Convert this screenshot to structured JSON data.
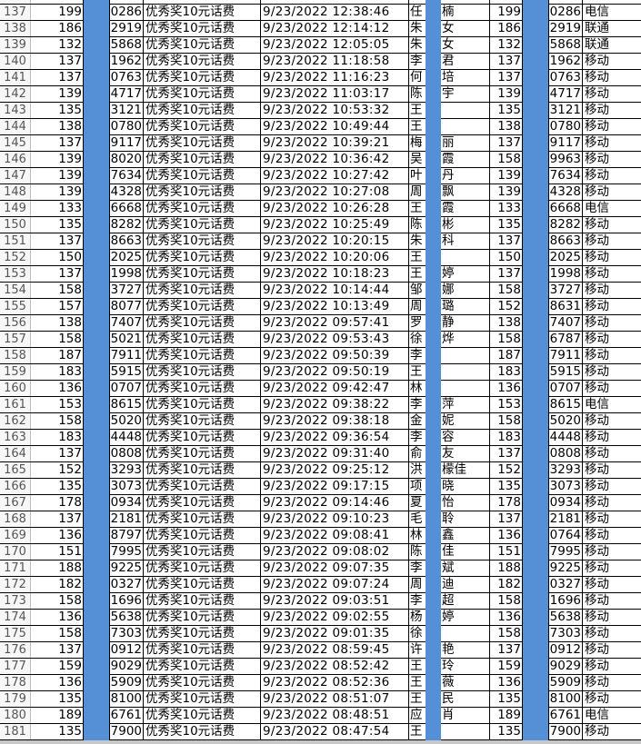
{
  "colors": {
    "highlight_bar": "#5590d6",
    "grid": "#000000"
  },
  "rows": [
    {
      "n": "137",
      "a": "199",
      "c": "0286",
      "d": "优秀奖10元话费",
      "e": "9/23/2022 12:38:46",
      "f": "任",
      "g": "楠",
      "h": "199",
      "i": "0286",
      "j": "电信"
    },
    {
      "n": "138",
      "a": "186",
      "c": "2919",
      "d": "优秀奖10元话费",
      "e": "9/23/2022 12:14:12",
      "f": "朱",
      "g": "女",
      "h": "186",
      "i": "2919",
      "j": "联通"
    },
    {
      "n": "139",
      "a": "132",
      "c": "5868",
      "d": "优秀奖10元话费",
      "e": "9/23/2022 12:05:05",
      "f": "朱",
      "g": "女",
      "h": "132",
      "i": "5868",
      "j": "联通"
    },
    {
      "n": "140",
      "a": "137",
      "c": "1962",
      "d": "优秀奖10元话费",
      "e": "9/23/2022 11:18:58",
      "f": "李",
      "g": "君",
      "h": "137",
      "i": "1962",
      "j": "移动"
    },
    {
      "n": "141",
      "a": "137",
      "c": "0763",
      "d": "优秀奖10元话费",
      "e": "9/23/2022 11:16:23",
      "f": "何",
      "g": "培",
      "h": "137",
      "i": "0763",
      "j": "移动"
    },
    {
      "n": "142",
      "a": "139",
      "c": "4717",
      "d": "优秀奖10元话费",
      "e": "9/23/2022 11:03:17",
      "f": "陈",
      "g": "宇",
      "h": "139",
      "i": "4717",
      "j": "移动"
    },
    {
      "n": "143",
      "a": "135",
      "c": "3121",
      "d": "优秀奖10元话费",
      "e": "9/23/2022 10:53:32",
      "f": "王",
      "g": "",
      "h": "135",
      "i": "3121",
      "j": "移动"
    },
    {
      "n": "144",
      "a": "138",
      "c": "0780",
      "d": "优秀奖10元话费",
      "e": "9/23/2022 10:49:44",
      "f": "王",
      "g": "",
      "h": "138",
      "i": "0780",
      "j": "移动"
    },
    {
      "n": "145",
      "a": "137",
      "c": "9117",
      "d": "优秀奖10元话费",
      "e": "9/23/2022 10:39:21",
      "f": "梅",
      "g": "丽",
      "h": "137",
      "i": "9117",
      "j": "移动"
    },
    {
      "n": "146",
      "a": "139",
      "c": "8020",
      "d": "优秀奖10元话费",
      "e": "9/23/2022 10:36:42",
      "f": "吴",
      "g": "霞",
      "h": "158",
      "i": "9963",
      "j": "移动"
    },
    {
      "n": "147",
      "a": "139",
      "c": "7634",
      "d": "优秀奖10元话费",
      "e": "9/23/2022 10:27:42",
      "f": "叶",
      "g": "丹",
      "h": "139",
      "i": "7634",
      "j": "移动"
    },
    {
      "n": "148",
      "a": "139",
      "c": "4328",
      "d": "优秀奖10元话费",
      "e": "9/23/2022 10:27:08",
      "f": "周",
      "g": "飘",
      "h": "139",
      "i": "4328",
      "j": "移动"
    },
    {
      "n": "149",
      "a": "133",
      "c": "6668",
      "d": "优秀奖10元话费",
      "e": "9/23/2022 10:26:28",
      "f": "王",
      "g": "霞",
      "h": "133",
      "i": "6668",
      "j": "电信"
    },
    {
      "n": "150",
      "a": "135",
      "c": "8282",
      "d": "优秀奖10元话费",
      "e": "9/23/2022 10:25:49",
      "f": "陈",
      "g": "彬",
      "h": "135",
      "i": "8282",
      "j": "移动"
    },
    {
      "n": "151",
      "a": "137",
      "c": "8663",
      "d": "优秀奖10元话费",
      "e": "9/23/2022 10:20:15",
      "f": "朱",
      "g": "科",
      "h": "137",
      "i": "8663",
      "j": "移动"
    },
    {
      "n": "152",
      "a": "150",
      "c": "2025",
      "d": "优秀奖10元话费",
      "e": "9/23/2022 10:20:06",
      "f": "王",
      "g": "",
      "h": "150",
      "i": "2025",
      "j": "移动"
    },
    {
      "n": "153",
      "a": "137",
      "c": "1998",
      "d": "优秀奖10元话费",
      "e": "9/23/2022 10:18:23",
      "f": "王",
      "g": "婷",
      "h": "137",
      "i": "1998",
      "j": "移动"
    },
    {
      "n": "154",
      "a": "158",
      "c": "3727",
      "d": "优秀奖10元话费",
      "e": "9/23/2022 10:14:44",
      "f": "邹",
      "g": "娜",
      "h": "158",
      "i": "3727",
      "j": "移动"
    },
    {
      "n": "155",
      "a": "157",
      "c": "8077",
      "d": "优秀奖10元话费",
      "e": "9/23/2022 10:13:49",
      "f": "周",
      "g": "璐",
      "h": "152",
      "i": "8631",
      "j": "移动"
    },
    {
      "n": "156",
      "a": "138",
      "c": "7407",
      "d": "优秀奖10元话费",
      "e": "9/23/2022 09:57:41",
      "f": "罗",
      "g": "静",
      "h": "138",
      "i": "7407",
      "j": "移动"
    },
    {
      "n": "157",
      "a": "158",
      "c": "5021",
      "d": "优秀奖10元话费",
      "e": "9/23/2022 09:53:43",
      "f": "徐",
      "g": "烨",
      "h": "158",
      "i": "6787",
      "j": "移动"
    },
    {
      "n": "158",
      "a": "187",
      "c": "7911",
      "d": "优秀奖10元话费",
      "e": "9/23/2022 09:50:39",
      "f": "李",
      "g": "",
      "h": "187",
      "i": "7911",
      "j": "移动"
    },
    {
      "n": "159",
      "a": "183",
      "c": "5915",
      "d": "优秀奖10元话费",
      "e": "9/23/2022 09:50:19",
      "f": "王",
      "g": "",
      "h": "183",
      "i": "5915",
      "j": "移动"
    },
    {
      "n": "160",
      "a": "136",
      "c": "0707",
      "d": "优秀奖10元话费",
      "e": "9/23/2022 09:42:47",
      "f": "林",
      "g": "",
      "h": "136",
      "i": "0707",
      "j": "移动"
    },
    {
      "n": "161",
      "a": "153",
      "c": "8615",
      "d": "优秀奖10元话费",
      "e": "9/23/2022 09:38:22",
      "f": "李",
      "g": "萍",
      "h": "153",
      "i": "8615",
      "j": "电信"
    },
    {
      "n": "162",
      "a": "158",
      "c": "5020",
      "d": "优秀奖10元话费",
      "e": "9/23/2022 09:38:18",
      "f": "金",
      "g": "妮",
      "h": "158",
      "i": "5020",
      "j": "移动"
    },
    {
      "n": "163",
      "a": "183",
      "c": "4448",
      "d": "优秀奖10元话费",
      "e": "9/23/2022 09:36:54",
      "f": "李",
      "g": "容",
      "h": "183",
      "i": "4448",
      "j": "移动"
    },
    {
      "n": "164",
      "a": "137",
      "c": "0808",
      "d": "优秀奖10元话费",
      "e": "9/23/2022 09:31:40",
      "f": "俞",
      "g": "友",
      "h": "137",
      "i": "0808",
      "j": "移动"
    },
    {
      "n": "165",
      "a": "152",
      "c": "3293",
      "d": "优秀奖10元话费",
      "e": "9/23/2022 09:25:12",
      "f": "洪",
      "g": "檬佳",
      "h": "152",
      "i": "3293",
      "j": "移动"
    },
    {
      "n": "166",
      "a": "135",
      "c": "3073",
      "d": "优秀奖10元话费",
      "e": "9/23/2022 09:17:15",
      "f": "项",
      "g": "晓",
      "h": "135",
      "i": "3073",
      "j": "移动"
    },
    {
      "n": "167",
      "a": "178",
      "c": "0934",
      "d": "优秀奖10元话费",
      "e": "9/23/2022 09:14:46",
      "f": "夏",
      "g": "怡",
      "h": "178",
      "i": "0934",
      "j": "移动"
    },
    {
      "n": "168",
      "a": "137",
      "c": "2181",
      "d": "优秀奖10元话费",
      "e": "9/23/2022 09:10:23",
      "f": "毛",
      "g": "聆",
      "h": "137",
      "i": "2181",
      "j": "移动"
    },
    {
      "n": "169",
      "a": "136",
      "c": "8797",
      "d": "优秀奖10元话费",
      "e": "9/23/2022 09:08:41",
      "f": "林",
      "g": "鑫",
      "h": "136",
      "i": "0764",
      "j": "移动"
    },
    {
      "n": "170",
      "a": "151",
      "c": "7995",
      "d": "优秀奖10元话费",
      "e": "9/23/2022 09:08:02",
      "f": "陈",
      "g": "佳",
      "h": "151",
      "i": "7995",
      "j": "移动"
    },
    {
      "n": "171",
      "a": "188",
      "c": "9225",
      "d": "优秀奖10元话费",
      "e": "9/23/2022 09:07:35",
      "f": "李",
      "g": "斌",
      "h": "188",
      "i": "9225",
      "j": "移动"
    },
    {
      "n": "172",
      "a": "182",
      "c": "0327",
      "d": "优秀奖10元话费",
      "e": "9/23/2022 09:07:24",
      "f": "周",
      "g": "迪",
      "h": "182",
      "i": "0327",
      "j": "移动"
    },
    {
      "n": "173",
      "a": "158",
      "c": "1696",
      "d": "优秀奖10元话费",
      "e": "9/23/2022 09:03:51",
      "f": "李",
      "g": "超",
      "h": "158",
      "i": "1696",
      "j": "移动"
    },
    {
      "n": "174",
      "a": "136",
      "c": "5638",
      "d": "优秀奖10元话费",
      "e": "9/23/2022 09:02:55",
      "f": "杨",
      "g": "婷",
      "h": "136",
      "i": "5638",
      "j": "移动"
    },
    {
      "n": "175",
      "a": "158",
      "c": "7303",
      "d": "优秀奖10元话费",
      "e": "9/23/2022 09:01:35",
      "f": "徐",
      "g": "",
      "h": "158",
      "i": "7303",
      "j": "移动"
    },
    {
      "n": "176",
      "a": "137",
      "c": "0912",
      "d": "优秀奖10元话费",
      "e": "9/23/2022 08:59:45",
      "f": "许",
      "g": "艳",
      "h": "137",
      "i": "0912",
      "j": "移动"
    },
    {
      "n": "177",
      "a": "159",
      "c": "9029",
      "d": "优秀奖10元话费",
      "e": "9/23/2022 08:52:42",
      "f": "王",
      "g": "玲",
      "h": "159",
      "i": "9029",
      "j": "移动"
    },
    {
      "n": "178",
      "a": "136",
      "c": "5909",
      "d": "优秀奖10元话费",
      "e": "9/23/2022 08:52:36",
      "f": "王",
      "g": "薇",
      "h": "136",
      "i": "5909",
      "j": "移动"
    },
    {
      "n": "179",
      "a": "135",
      "c": "8100",
      "d": "优秀奖10元话费",
      "e": "9/23/2022 08:51:07",
      "f": "王",
      "g": "民",
      "h": "135",
      "i": "8100",
      "j": "移动"
    },
    {
      "n": "180",
      "a": "189",
      "c": "6761",
      "d": "优秀奖10元话费",
      "e": "9/23/2022 08:48:51",
      "f": "应",
      "g": "肖",
      "h": "189",
      "i": "6761",
      "j": "电信"
    },
    {
      "n": "181",
      "a": "135",
      "c": "7900",
      "d": "优秀奖10元话费",
      "e": "9/23/2022 08:47:54",
      "f": "王",
      "g": "",
      "h": "135",
      "i": "7900",
      "j": "移动"
    }
  ]
}
